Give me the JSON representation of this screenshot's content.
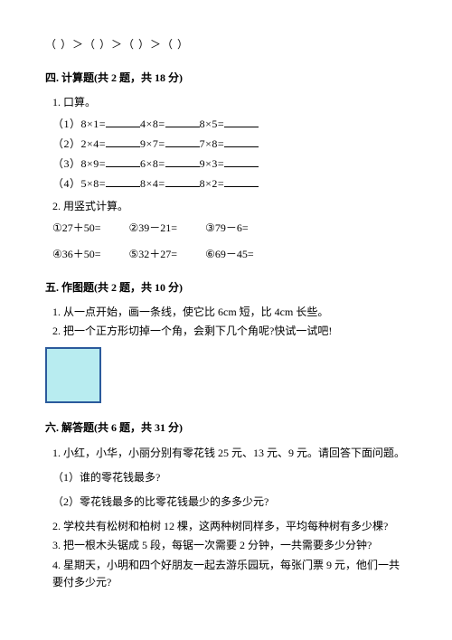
{
  "top_inequality": "（   ）＞（   ）＞（   ）＞（   ）",
  "section4": {
    "title": "四. 计算题(共 2 题，共 18 分)",
    "q1_title": "1. 口算。",
    "rows": [
      {
        "label": "（1）",
        "a": "8×1=",
        "b": "4×8=",
        "c": "8×5="
      },
      {
        "label": "（2）",
        "a": "2×4=",
        "b": "9×7=",
        "c": "7×8="
      },
      {
        "label": "（3）",
        "a": "8×9=",
        "b": "6×8=",
        "c": "9×3="
      },
      {
        "label": "（4）",
        "a": "5×8=",
        "b": "8×4=",
        "c": "8×2="
      }
    ],
    "q2_title": "2. 用竖式计算。",
    "vrow1": {
      "a": "①27＋50=",
      "b": "②39－21=",
      "c": "③79－6="
    },
    "vrow2": {
      "a": "④36＋50=",
      "b": "⑤32＋27=",
      "c": "⑥69－45="
    }
  },
  "section5": {
    "title": "五. 作图题(共 2 题，共 10 分)",
    "q1": "1. 从一点开始，画一条线，使它比 6cm 短，比 4cm 长些。",
    "q2": "2. 把一个正方形切掉一个角，会剩下几个角呢?快试一试吧!",
    "square": {
      "fill": "#b8ecf0",
      "border": "#2b5a9c"
    }
  },
  "section6": {
    "title": "六. 解答题(共 6 题，共 31 分)",
    "q1": "1. 小红，小华，小丽分别有零花钱 25 元、13 元、9 元。请回答下面问题。",
    "q1_sub1": "（1）谁的零花钱最多?",
    "q1_sub2": "（2）零花钱最多的比零花钱最少的多多少元?",
    "q2": "2. 学校共有松树和柏树 12 棵，这两种树同样多，平均每种树有多少棵?",
    "q3": "3. 把一根木头锯成 5 段，每锯一次需要 2 分钟，一共需要多少分钟?",
    "q4": "4. 星期天，小明和四个好朋友一起去游乐园玩，每张门票 9 元，他们一共要付多少元?"
  }
}
